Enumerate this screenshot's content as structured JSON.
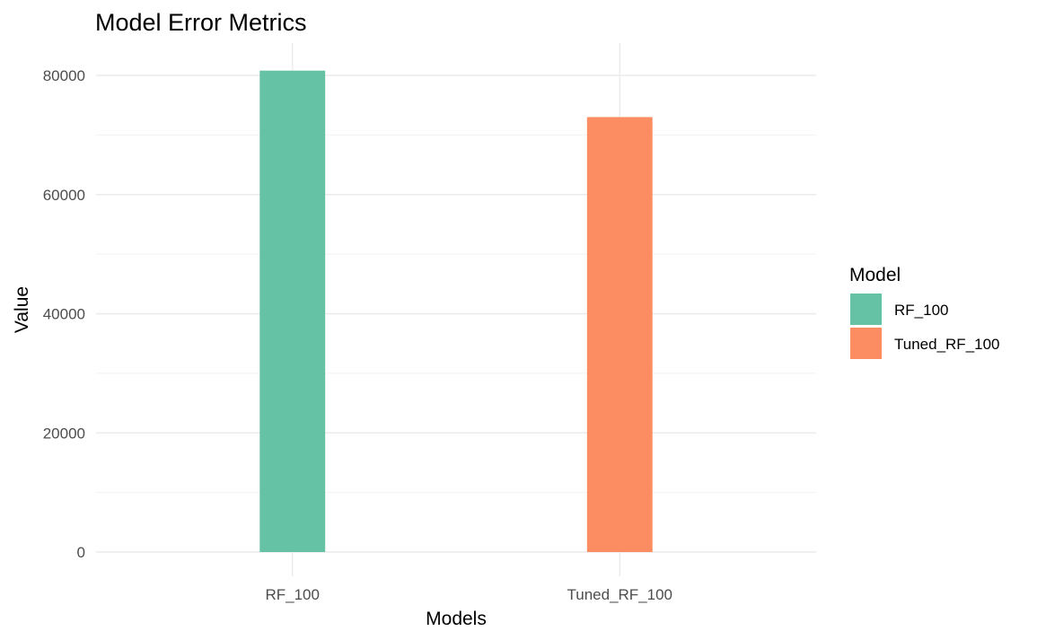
{
  "chart_data": {
    "type": "bar",
    "title": "Model Error Metrics",
    "xlabel": "Models",
    "ylabel": "Value",
    "categories": [
      "RF_100",
      "Tuned_RF_100"
    ],
    "values": [
      80800,
      73000
    ],
    "colors": [
      "#66c2a5",
      "#fc8d62"
    ],
    "ylim": [
      0,
      87000
    ],
    "yticks": [
      0,
      20000,
      40000,
      60000,
      80000
    ],
    "grid": true,
    "legend": {
      "title": "Model",
      "position": "right",
      "entries": [
        "RF_100",
        "Tuned_RF_100"
      ]
    }
  }
}
